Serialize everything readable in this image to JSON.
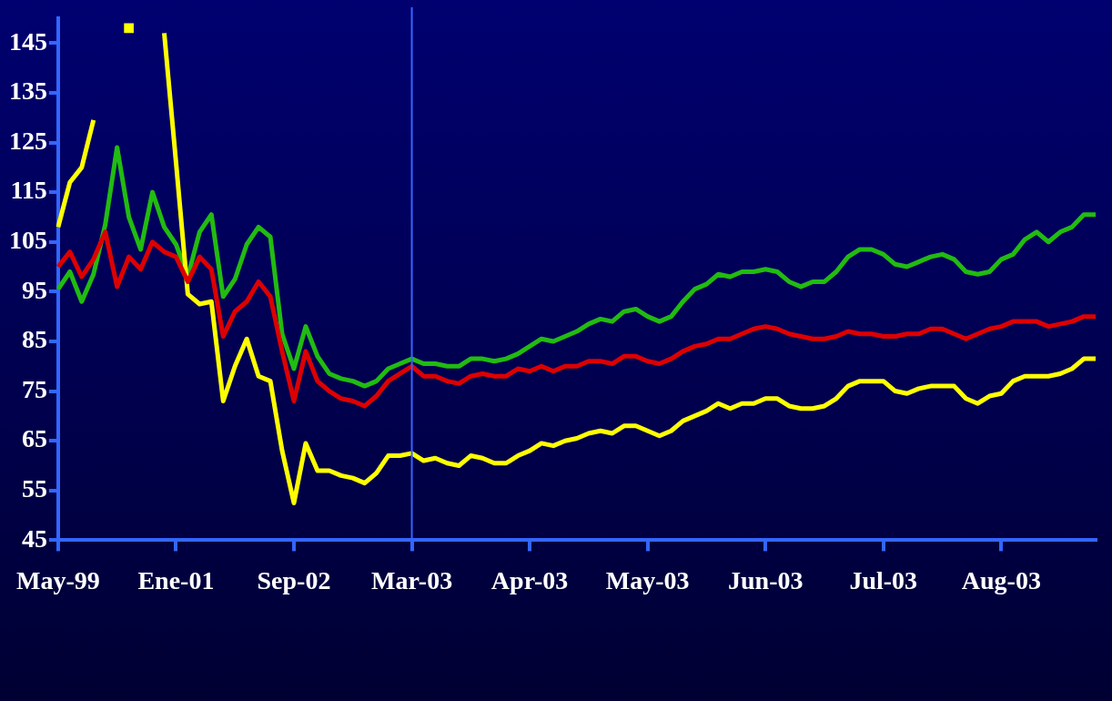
{
  "chart_data": {
    "type": "line",
    "categories": [
      "May-99",
      null,
      null,
      null,
      null,
      null,
      null,
      null,
      null,
      null,
      "Ene-01",
      null,
      null,
      null,
      null,
      null,
      null,
      null,
      null,
      null,
      "Sep-02",
      null,
      null,
      null,
      null,
      null,
      null,
      null,
      null,
      null,
      "Mar-03",
      null,
      null,
      null,
      null,
      null,
      null,
      null,
      null,
      null,
      "Apr-03",
      null,
      null,
      null,
      null,
      null,
      null,
      null,
      null,
      null,
      "May-03",
      null,
      null,
      null,
      null,
      null,
      null,
      null,
      null,
      null,
      "Jun-03",
      null,
      null,
      null,
      null,
      null,
      null,
      null,
      null,
      null,
      "Jul-03",
      null,
      null,
      null,
      null,
      null,
      null,
      null,
      null,
      null,
      "Aug-03",
      null,
      null,
      null,
      null,
      null,
      null,
      null,
      null
    ],
    "series": [
      {
        "color": "#dd0000",
        "values": [
          100,
          103,
          98,
          101.5,
          107,
          96,
          102,
          99.5,
          105,
          103,
          102,
          97,
          102,
          99.5,
          86,
          91,
          93,
          97,
          94,
          83,
          73,
          83,
          77,
          75,
          73.5,
          73,
          72,
          74,
          77,
          78.5,
          80,
          78,
          78,
          77,
          76.5,
          78,
          78.5,
          78,
          78,
          79.5,
          79,
          80,
          79,
          80,
          80,
          81,
          81,
          80.5,
          82,
          82,
          81,
          80.5,
          81.5,
          83,
          84,
          84.5,
          85.5,
          85.5,
          86.5,
          87.5,
          88,
          87.5,
          86.5,
          86,
          85.5,
          85.5,
          86,
          87,
          86.5,
          86.5,
          86,
          86,
          86.5,
          86.5,
          87.5,
          87.5,
          86.5,
          85.5,
          86.5,
          87.5,
          88,
          89,
          89,
          89,
          88,
          88.5,
          89,
          90,
          90
        ]
      },
      {
        "color": "#ffff00",
        "values": [
          108,
          117,
          120,
          129.5,
          null,
          null,
          148,
          null,
          null,
          147,
          121,
          94.5,
          92.5,
          93,
          73,
          80,
          85.5,
          78,
          77,
          63,
          52.5,
          64.5,
          59,
          59,
          58,
          57.5,
          56.5,
          58.5,
          62,
          62,
          62.5,
          61,
          61.5,
          60.5,
          60,
          62,
          61.5,
          60.5,
          60.5,
          62,
          63,
          64.5,
          64,
          65,
          65.5,
          66.5,
          67,
          66.5,
          68,
          68,
          67,
          66,
          67,
          69,
          70,
          71,
          72.5,
          71.5,
          72.5,
          72.5,
          73.5,
          73.5,
          72,
          71.5,
          71.5,
          72,
          73.5,
          76,
          77,
          77,
          77,
          75,
          74.5,
          75.5,
          76,
          76,
          76,
          73.5,
          72.5,
          74,
          74.5,
          77,
          78,
          78,
          78,
          78.5,
          79.5,
          81.5,
          81.5
        ]
      },
      {
        "color": "#22bb11",
        "values": [
          95.5,
          99,
          93,
          98.5,
          108.5,
          124,
          110,
          103.5,
          115,
          108,
          104.5,
          98,
          107,
          110.5,
          94,
          97.5,
          104.5,
          108,
          106,
          86.5,
          79.5,
          88,
          82,
          78.5,
          77.5,
          77,
          76,
          77,
          79.5,
          80.5,
          81.5,
          80.5,
          80.5,
          80,
          80,
          81.5,
          81.5,
          81,
          81.5,
          82.5,
          84,
          85.5,
          85,
          86,
          87,
          88.5,
          89.5,
          89,
          91,
          91.5,
          90,
          89,
          90,
          93,
          95.5,
          96.5,
          98.5,
          98,
          99,
          99,
          99.5,
          99,
          97,
          96,
          97,
          97,
          99,
          102,
          103.5,
          103.5,
          102.5,
          100.5,
          100,
          101,
          102,
          102.5,
          101.5,
          99,
          98.5,
          99,
          101.5,
          102.5,
          105.5,
          107,
          105,
          107,
          108,
          110.5,
          110.5
        ]
      }
    ],
    "ylim": [
      45,
      150
    ],
    "yticks": [
      45,
      55,
      65,
      75,
      85,
      95,
      105,
      115,
      125,
      135,
      145
    ],
    "ref_lines": [
      {
        "axis": "x",
        "value": "Mar-03",
        "color": "#3366ff"
      }
    ]
  }
}
